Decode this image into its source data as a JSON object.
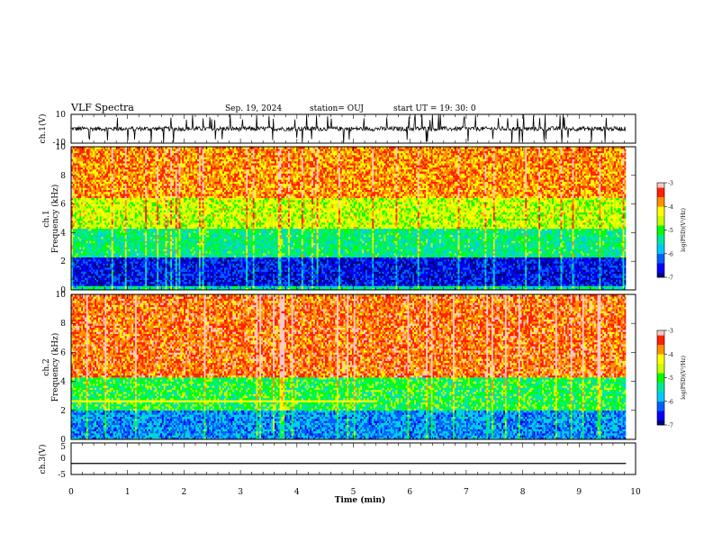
{
  "header": {
    "title": "VLF Spectra",
    "date": "Sep. 19, 2024",
    "station": "station= OUJ",
    "start": "start  UT =   19: 30: 0"
  },
  "colors": {
    "spectrum_ramp": [
      "#000080",
      "#0000ff",
      "#0060ff",
      "#00c8ff",
      "#00e8a0",
      "#00ff00",
      "#c8ff00",
      "#ffff00",
      "#ff9000",
      "#ff2000",
      "#ffc8c8"
    ]
  },
  "chart_data": [
    {
      "type": "line",
      "name": "ch1-waveform",
      "ylabel": "ch.1(V)",
      "ylim": [
        -10,
        10
      ],
      "yticks": [
        "10",
        "-10"
      ],
      "xlim": [
        0,
        10
      ],
      "baseline": 0,
      "description_values": {
        "mean": 0,
        "burst_min": -10,
        "burst_max": 10
      }
    },
    {
      "type": "heatmap",
      "name": "ch1-spectrogram",
      "ylabel": "ch.1\nFrequency  (kHz)",
      "ylim": [
        0,
        10
      ],
      "yticks": [
        "0",
        "2",
        "4",
        "6",
        "8",
        "10"
      ],
      "xlim": [
        0,
        9.83
      ],
      "colorbar": {
        "label": "log(PSD)(V²/Hz)",
        "range": [
          -7,
          -3
        ],
        "ticks": [
          "-3",
          "-4",
          "-5",
          "-6",
          "-7"
        ]
      },
      "bands_khz": [
        {
          "from": 0,
          "to": 0.3,
          "level": -5.5
        },
        {
          "from": 0.3,
          "to": 2.3,
          "level": -6.6
        },
        {
          "from": 2.3,
          "to": 4.3,
          "level": -5.3
        },
        {
          "from": 4.3,
          "to": 6.5,
          "level": -4.5
        },
        {
          "from": 6.5,
          "to": 10,
          "level": -3.8
        }
      ]
    },
    {
      "type": "heatmap",
      "name": "ch2-spectrogram",
      "ylabel": "ch.2\nFrequency  (kHz)",
      "ylim": [
        0,
        10
      ],
      "yticks": [
        "0",
        "2",
        "4",
        "6",
        "8",
        "10"
      ],
      "xlim": [
        0,
        9.83
      ],
      "colorbar": {
        "label": "log(PSD)(V²/Hz)",
        "range": [
          -7,
          -3
        ],
        "ticks": [
          "-3",
          "-4",
          "-5",
          "-6",
          "-7"
        ]
      },
      "bands_khz": [
        {
          "from": 0,
          "to": 2.0,
          "level": -6.0
        },
        {
          "from": 2.0,
          "to": 4.3,
          "level": -5.1
        },
        {
          "from": 4.3,
          "to": 10,
          "level": -3.6
        }
      ],
      "tone_khz": 2.6,
      "tone_end_min": 5.4
    },
    {
      "type": "line",
      "name": "ch3-waveform",
      "ylabel": "ch.3(V)",
      "ylim": [
        -5,
        5
      ],
      "yticks": [
        "5",
        "0",
        "-5"
      ],
      "xlim": [
        0,
        10
      ],
      "values": [
        {
          "x": 0,
          "y": -1.5
        },
        {
          "x": 9.83,
          "y": -1.5
        }
      ]
    }
  ],
  "xaxis": {
    "label": "Time  (min)",
    "ticks": [
      "0",
      "1",
      "2",
      "3",
      "4",
      "5",
      "6",
      "7",
      "8",
      "9",
      "10"
    ]
  }
}
